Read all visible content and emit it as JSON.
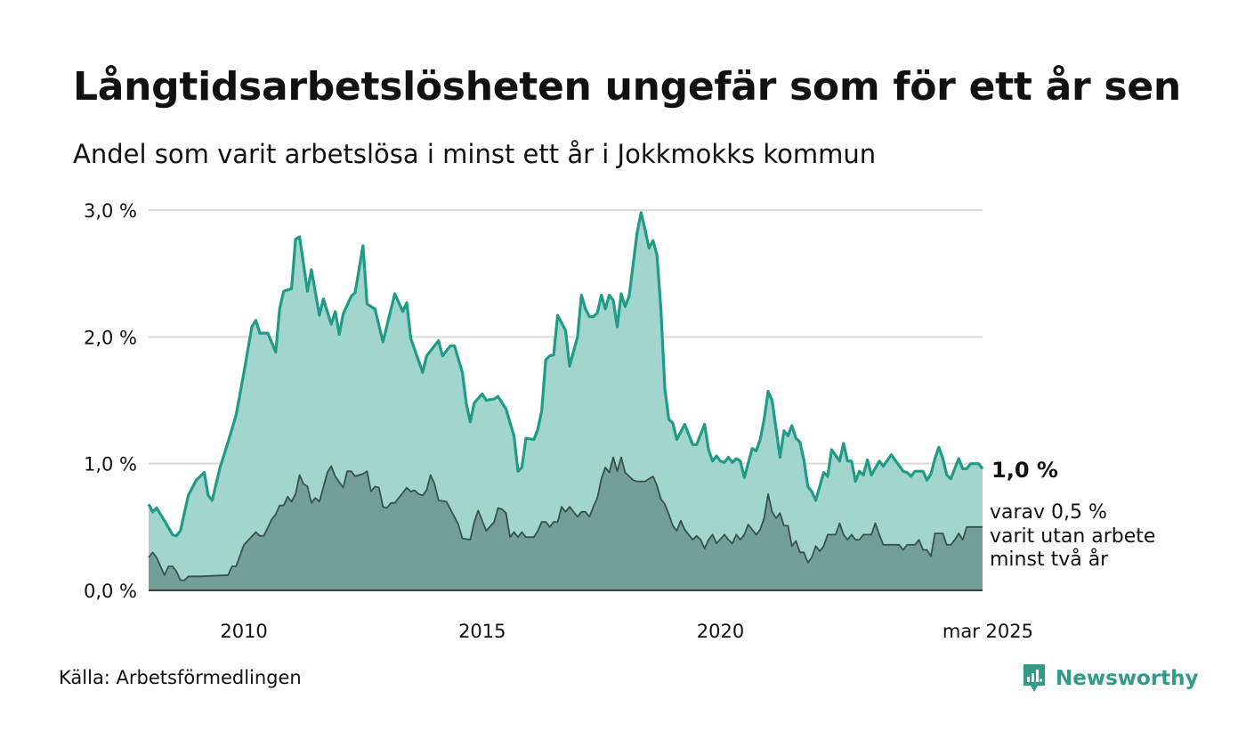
{
  "title": "Långtidsarbetslösheten ungefär som för ett år sen",
  "subtitle": "Andel som varit arbetslösa i minst ett år i Jokkmokks kommun",
  "source": "Källa: Arbetsförmedlingen",
  "brand": "Newsworthy",
  "colors": {
    "line_main": "#1f9b86",
    "area_main": "#a3d5cf",
    "line_sub": "#35534c",
    "area_sub": "#729f97",
    "grid": "#d9d9d9",
    "brand": "#2e9c87"
  },
  "end_labels": {
    "main_value": "1,0 %",
    "sub_line1": "varav 0,5 %",
    "sub_line2": "varit utan arbete",
    "sub_line3": "minst två år"
  },
  "chart_data": {
    "type": "area",
    "x_start": "2008-01",
    "x_end": "2025-03",
    "x_step": "month",
    "x_ticks": [
      {
        "x": "2010",
        "label": "2010"
      },
      {
        "x": "2015",
        "label": "2015"
      },
      {
        "x": "2020",
        "label": "2020"
      },
      {
        "x": "2025-03",
        "label": "mar 2025"
      }
    ],
    "y_ticks": [
      {
        "y": 0.0,
        "label": "0,0 %"
      },
      {
        "y": 1.0,
        "label": "1,0 %"
      },
      {
        "y": 2.0,
        "label": "2,0 %"
      },
      {
        "y": 3.0,
        "label": "3,0 %"
      }
    ],
    "ylim": [
      0,
      3.0
    ],
    "grid": true,
    "anchors_main": [
      [
        "2008-01",
        0.68
      ],
      [
        "2008-02",
        0.62
      ],
      [
        "2008-03",
        0.65
      ],
      [
        "2008-05",
        0.55
      ],
      [
        "2008-07",
        0.44
      ],
      [
        "2008-08",
        0.43
      ],
      [
        "2008-09",
        0.47
      ],
      [
        "2008-11",
        0.75
      ],
      [
        "2009-01",
        0.87
      ],
      [
        "2009-03",
        0.93
      ],
      [
        "2009-04",
        0.75
      ],
      [
        "2009-05",
        0.71
      ],
      [
        "2009-07",
        0.97
      ],
      [
        "2009-09",
        1.17
      ],
      [
        "2009-11",
        1.38
      ],
      [
        "2010-01",
        1.72
      ],
      [
        "2010-03",
        2.08
      ],
      [
        "2010-04",
        2.13
      ],
      [
        "2010-05",
        2.03
      ],
      [
        "2010-07",
        2.03
      ],
      [
        "2010-09",
        1.88
      ],
      [
        "2010-10",
        2.22
      ],
      [
        "2010-11",
        2.36
      ],
      [
        "2011-01",
        2.38
      ],
      [
        "2011-02",
        2.77
      ],
      [
        "2011-03",
        2.79
      ],
      [
        "2011-05",
        2.36
      ],
      [
        "2011-06",
        2.53
      ],
      [
        "2011-08",
        2.17
      ],
      [
        "2011-09",
        2.3
      ],
      [
        "2011-11",
        2.1
      ],
      [
        "2011-12",
        2.2
      ],
      [
        "2012-01",
        2.02
      ],
      [
        "2012-02",
        2.18
      ],
      [
        "2012-04",
        2.32
      ],
      [
        "2012-05",
        2.35
      ],
      [
        "2012-07",
        2.72
      ],
      [
        "2012-08",
        2.26
      ],
      [
        "2012-10",
        2.22
      ],
      [
        "2012-12",
        1.96
      ],
      [
        "2013-03",
        2.34
      ],
      [
        "2013-05",
        2.2
      ],
      [
        "2013-06",
        2.27
      ],
      [
        "2013-07",
        1.99
      ],
      [
        "2013-10",
        1.72
      ],
      [
        "2013-11",
        1.85
      ],
      [
        "2014-02",
        1.97
      ],
      [
        "2014-03",
        1.85
      ],
      [
        "2014-05",
        1.93
      ],
      [
        "2014-06",
        1.93
      ],
      [
        "2014-08",
        1.72
      ],
      [
        "2014-09",
        1.47
      ],
      [
        "2014-10",
        1.33
      ],
      [
        "2014-11",
        1.48
      ],
      [
        "2015-01",
        1.55
      ],
      [
        "2015-02",
        1.5
      ],
      [
        "2015-04",
        1.51
      ],
      [
        "2015-05",
        1.53
      ],
      [
        "2015-07",
        1.43
      ],
      [
        "2015-09",
        1.22
      ],
      [
        "2015-10",
        0.94
      ],
      [
        "2015-11",
        0.97
      ],
      [
        "2015-12",
        1.2
      ],
      [
        "2016-02",
        1.19
      ],
      [
        "2016-03",
        1.27
      ],
      [
        "2016-04",
        1.42
      ],
      [
        "2016-05",
        1.82
      ],
      [
        "2016-06",
        1.85
      ],
      [
        "2016-07",
        1.86
      ],
      [
        "2016-08",
        2.17
      ],
      [
        "2016-10",
        2.05
      ],
      [
        "2016-11",
        1.77
      ],
      [
        "2017-01",
        2.0
      ],
      [
        "2017-02",
        2.33
      ],
      [
        "2017-03",
        2.22
      ],
      [
        "2017-04",
        2.16
      ],
      [
        "2017-05",
        2.16
      ],
      [
        "2017-06",
        2.19
      ],
      [
        "2017-07",
        2.33
      ],
      [
        "2017-08",
        2.22
      ],
      [
        "2017-09",
        2.33
      ],
      [
        "2017-10",
        2.29
      ],
      [
        "2017-11",
        2.08
      ],
      [
        "2017-12",
        2.34
      ],
      [
        "2018-01",
        2.24
      ],
      [
        "2018-02",
        2.32
      ],
      [
        "2018-04",
        2.82
      ],
      [
        "2018-05",
        2.98
      ],
      [
        "2018-06",
        2.85
      ],
      [
        "2018-07",
        2.7
      ],
      [
        "2018-08",
        2.76
      ],
      [
        "2018-09",
        2.65
      ],
      [
        "2018-10",
        2.22
      ],
      [
        "2018-11",
        1.59
      ],
      [
        "2018-12",
        1.35
      ],
      [
        "2019-01",
        1.32
      ],
      [
        "2019-02",
        1.19
      ],
      [
        "2019-04",
        1.31
      ],
      [
        "2019-06",
        1.15
      ],
      [
        "2019-07",
        1.15
      ],
      [
        "2019-09",
        1.31
      ],
      [
        "2019-10",
        1.11
      ],
      [
        "2019-11",
        1.02
      ],
      [
        "2019-12",
        1.06
      ],
      [
        "2020-01",
        1.02
      ],
      [
        "2020-02",
        1.01
      ],
      [
        "2020-03",
        1.05
      ],
      [
        "2020-04",
        1.01
      ],
      [
        "2020-05",
        1.04
      ],
      [
        "2020-06",
        1.02
      ],
      [
        "2020-07",
        0.89
      ],
      [
        "2020-09",
        1.12
      ],
      [
        "2020-10",
        1.1
      ],
      [
        "2020-11",
        1.19
      ],
      [
        "2020-12",
        1.35
      ],
      [
        "2021-01",
        1.57
      ],
      [
        "2021-02",
        1.5
      ],
      [
        "2021-04",
        1.05
      ],
      [
        "2021-05",
        1.26
      ],
      [
        "2021-06",
        1.22
      ],
      [
        "2021-07",
        1.3
      ],
      [
        "2021-08",
        1.2
      ],
      [
        "2021-09",
        1.17
      ],
      [
        "2021-10",
        1.03
      ],
      [
        "2021-11",
        0.82
      ],
      [
        "2021-12",
        0.78
      ],
      [
        "2022-01",
        0.71
      ],
      [
        "2022-03",
        0.93
      ],
      [
        "2022-04",
        0.9
      ],
      [
        "2022-05",
        1.11
      ],
      [
        "2022-07",
        1.02
      ],
      [
        "2022-08",
        1.16
      ],
      [
        "2022-09",
        1.02
      ],
      [
        "2022-10",
        1.02
      ],
      [
        "2022-11",
        0.86
      ],
      [
        "2022-12",
        0.94
      ],
      [
        "2023-01",
        0.91
      ],
      [
        "2023-02",
        1.03
      ],
      [
        "2023-03",
        0.91
      ],
      [
        "2023-05",
        1.02
      ],
      [
        "2023-06",
        0.98
      ],
      [
        "2023-08",
        1.07
      ],
      [
        "2023-11",
        0.94
      ],
      [
        "2023-12",
        0.93
      ],
      [
        "2024-01",
        0.9
      ],
      [
        "2024-02",
        0.94
      ],
      [
        "2024-04",
        0.94
      ],
      [
        "2024-05",
        0.87
      ],
      [
        "2024-06",
        0.92
      ],
      [
        "2024-07",
        1.04
      ],
      [
        "2024-08",
        1.13
      ],
      [
        "2024-09",
        1.04
      ],
      [
        "2024-10",
        0.91
      ],
      [
        "2024-11",
        0.88
      ],
      [
        "2025-01",
        1.04
      ],
      [
        "2025-02",
        0.96
      ],
      [
        "2025-03",
        0.96
      ],
      [
        "2025-04",
        1.0
      ],
      [
        "2025-06",
        1.0
      ],
      [
        "2025-07",
        0.96
      ]
    ],
    "anchors_sub": [
      [
        "2008-01",
        0.26
      ],
      [
        "2008-02",
        0.3
      ],
      [
        "2008-03",
        0.26
      ],
      [
        "2008-05",
        0.12
      ],
      [
        "2008-06",
        0.19
      ],
      [
        "2008-07",
        0.19
      ],
      [
        "2008-08",
        0.15
      ],
      [
        "2008-09",
        0.08
      ],
      [
        "2008-10",
        0.08
      ],
      [
        "2008-11",
        0.11
      ],
      [
        "2009-02",
        0.11
      ],
      [
        "2009-09",
        0.12
      ],
      [
        "2009-10",
        0.19
      ],
      [
        "2009-11",
        0.19
      ],
      [
        "2010-01",
        0.36
      ],
      [
        "2010-04",
        0.46
      ],
      [
        "2010-05",
        0.43
      ],
      [
        "2010-06",
        0.43
      ],
      [
        "2010-08",
        0.56
      ],
      [
        "2010-09",
        0.6
      ],
      [
        "2010-10",
        0.67
      ],
      [
        "2010-11",
        0.67
      ],
      [
        "2010-12",
        0.74
      ],
      [
        "2011-01",
        0.7
      ],
      [
        "2011-02",
        0.76
      ],
      [
        "2011-03",
        0.91
      ],
      [
        "2011-04",
        0.84
      ],
      [
        "2011-05",
        0.82
      ],
      [
        "2011-06",
        0.69
      ],
      [
        "2011-07",
        0.73
      ],
      [
        "2011-08",
        0.7
      ],
      [
        "2011-10",
        0.93
      ],
      [
        "2011-11",
        0.98
      ],
      [
        "2011-12",
        0.9
      ],
      [
        "2012-02",
        0.81
      ],
      [
        "2012-03",
        0.94
      ],
      [
        "2012-04",
        0.94
      ],
      [
        "2012-05",
        0.9
      ],
      [
        "2012-07",
        0.92
      ],
      [
        "2012-08",
        0.94
      ],
      [
        "2012-09",
        0.78
      ],
      [
        "2012-10",
        0.82
      ],
      [
        "2012-11",
        0.81
      ],
      [
        "2012-12",
        0.66
      ],
      [
        "2013-01",
        0.65
      ],
      [
        "2013-02",
        0.69
      ],
      [
        "2013-03",
        0.69
      ],
      [
        "2013-05",
        0.77
      ],
      [
        "2013-06",
        0.81
      ],
      [
        "2013-07",
        0.78
      ],
      [
        "2013-08",
        0.79
      ],
      [
        "2013-09",
        0.76
      ],
      [
        "2013-10",
        0.75
      ],
      [
        "2013-11",
        0.79
      ],
      [
        "2013-12",
        0.91
      ],
      [
        "2014-01",
        0.84
      ],
      [
        "2014-02",
        0.71
      ],
      [
        "2014-04",
        0.7
      ],
      [
        "2014-06",
        0.58
      ],
      [
        "2014-07",
        0.52
      ],
      [
        "2014-08",
        0.41
      ],
      [
        "2014-10",
        0.4
      ],
      [
        "2014-11",
        0.54
      ],
      [
        "2014-12",
        0.63
      ],
      [
        "2015-02",
        0.47
      ],
      [
        "2015-04",
        0.54
      ],
      [
        "2015-05",
        0.65
      ],
      [
        "2015-06",
        0.64
      ],
      [
        "2015-07",
        0.61
      ],
      [
        "2015-08",
        0.42
      ],
      [
        "2015-09",
        0.46
      ],
      [
        "2015-10",
        0.42
      ],
      [
        "2015-11",
        0.46
      ],
      [
        "2015-12",
        0.42
      ],
      [
        "2016-02",
        0.42
      ],
      [
        "2016-03",
        0.47
      ],
      [
        "2016-04",
        0.54
      ],
      [
        "2016-05",
        0.54
      ],
      [
        "2016-06",
        0.5
      ],
      [
        "2016-07",
        0.54
      ],
      [
        "2016-08",
        0.54
      ],
      [
        "2016-09",
        0.66
      ],
      [
        "2016-10",
        0.62
      ],
      [
        "2016-11",
        0.66
      ],
      [
        "2017-01",
        0.58
      ],
      [
        "2017-02",
        0.62
      ],
      [
        "2017-03",
        0.62
      ],
      [
        "2017-04",
        0.58
      ],
      [
        "2017-05",
        0.66
      ],
      [
        "2017-06",
        0.73
      ],
      [
        "2017-07",
        0.88
      ],
      [
        "2017-08",
        0.97
      ],
      [
        "2017-09",
        0.93
      ],
      [
        "2017-10",
        1.05
      ],
      [
        "2017-11",
        0.94
      ],
      [
        "2017-12",
        1.05
      ],
      [
        "2018-01",
        0.93
      ],
      [
        "2018-02",
        0.9
      ],
      [
        "2018-03",
        0.87
      ],
      [
        "2018-04",
        0.86
      ],
      [
        "2018-06",
        0.86
      ],
      [
        "2018-08",
        0.9
      ],
      [
        "2018-09",
        0.83
      ],
      [
        "2018-10",
        0.72
      ],
      [
        "2018-11",
        0.68
      ],
      [
        "2018-12",
        0.6
      ],
      [
        "2019-01",
        0.51
      ],
      [
        "2019-02",
        0.47
      ],
      [
        "2019-03",
        0.55
      ],
      [
        "2019-04",
        0.48
      ],
      [
        "2019-05",
        0.44
      ],
      [
        "2019-06",
        0.4
      ],
      [
        "2019-07",
        0.43
      ],
      [
        "2019-08",
        0.4
      ],
      [
        "2019-09",
        0.33
      ],
      [
        "2019-10",
        0.4
      ],
      [
        "2019-11",
        0.44
      ],
      [
        "2019-12",
        0.37
      ],
      [
        "2020-02",
        0.44
      ],
      [
        "2020-03",
        0.4
      ],
      [
        "2020-04",
        0.37
      ],
      [
        "2020-05",
        0.44
      ],
      [
        "2020-06",
        0.4
      ],
      [
        "2020-07",
        0.44
      ],
      [
        "2020-08",
        0.52
      ],
      [
        "2020-10",
        0.44
      ],
      [
        "2020-11",
        0.48
      ],
      [
        "2020-12",
        0.57
      ],
      [
        "2021-01",
        0.76
      ],
      [
        "2021-02",
        0.62
      ],
      [
        "2021-03",
        0.57
      ],
      [
        "2021-04",
        0.61
      ],
      [
        "2021-05",
        0.51
      ],
      [
        "2021-06",
        0.51
      ],
      [
        "2021-07",
        0.35
      ],
      [
        "2021-08",
        0.39
      ],
      [
        "2021-09",
        0.3
      ],
      [
        "2021-10",
        0.3
      ],
      [
        "2021-11",
        0.22
      ],
      [
        "2021-12",
        0.26
      ],
      [
        "2022-01",
        0.35
      ],
      [
        "2022-02",
        0.31
      ],
      [
        "2022-03",
        0.35
      ],
      [
        "2022-04",
        0.44
      ],
      [
        "2022-06",
        0.44
      ],
      [
        "2022-07",
        0.53
      ],
      [
        "2022-08",
        0.44
      ],
      [
        "2022-09",
        0.4
      ],
      [
        "2022-10",
        0.44
      ],
      [
        "2022-11",
        0.4
      ],
      [
        "2022-12",
        0.4
      ],
      [
        "2023-01",
        0.44
      ],
      [
        "2023-03",
        0.44
      ],
      [
        "2023-04",
        0.53
      ],
      [
        "2023-05",
        0.44
      ],
      [
        "2023-06",
        0.36
      ],
      [
        "2023-10",
        0.36
      ],
      [
        "2023-11",
        0.32
      ],
      [
        "2023-12",
        0.36
      ],
      [
        "2024-02",
        0.36
      ],
      [
        "2024-03",
        0.4
      ],
      [
        "2024-04",
        0.32
      ],
      [
        "2024-05",
        0.32
      ],
      [
        "2024-06",
        0.27
      ],
      [
        "2024-07",
        0.45
      ],
      [
        "2024-09",
        0.45
      ],
      [
        "2024-10",
        0.36
      ],
      [
        "2024-11",
        0.36
      ],
      [
        "2024-12",
        0.4
      ],
      [
        "2025-01",
        0.45
      ],
      [
        "2025-02",
        0.4
      ],
      [
        "2025-03",
        0.5
      ],
      [
        "2025-07",
        0.5
      ]
    ],
    "series": [
      {
        "name": "minst ett år",
        "end_value": 1.0
      },
      {
        "name": "varav minst två år",
        "end_value": 0.5
      }
    ]
  }
}
